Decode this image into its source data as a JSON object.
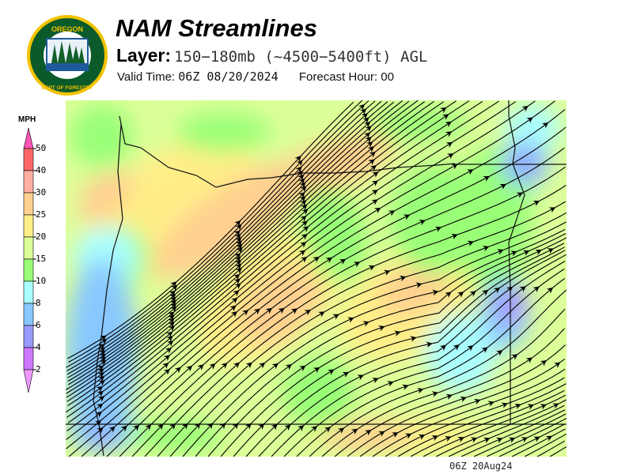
{
  "logo": {
    "text_top": "OREGON",
    "text_bottom": "DEPARTMENT OF FORESTRY",
    "colors": {
      "ring": "#f2c200",
      "field": "#0b5a2a",
      "water": "#1e5a9a"
    }
  },
  "header": {
    "title": "NAM Streamlines",
    "layer_label": "Layer:",
    "layer_value": "150−180mb (~4500−5400ft) AGL",
    "valid_label": "Valid Time:",
    "valid_value": "06Z 08/20/2024",
    "forecast_label": "Forecast Hour:",
    "forecast_value": "00"
  },
  "legend": {
    "unit": "MPH",
    "ticks": [
      "50",
      "40",
      "30",
      "25",
      "20",
      "15",
      "10",
      "8",
      "6",
      "4",
      "2"
    ],
    "colors": {
      "above_50": "#ff55bb",
      "40_50": "#ff6666",
      "30_40": "#ffb0a0",
      "25_30": "#ffd090",
      "20_25": "#ffee88",
      "15_20": "#ddff99",
      "10_15": "#99ff77",
      "8_10": "#aaffff",
      "6_8": "#88c8ff",
      "4_6": "#9999ff",
      "2_4": "#cc77ff",
      "below_2": "#ee99ff"
    }
  },
  "map": {
    "flow": "southwest to northeast",
    "region": "Oregon"
  },
  "footer": {
    "stamp": "06Z 20Aug24"
  }
}
